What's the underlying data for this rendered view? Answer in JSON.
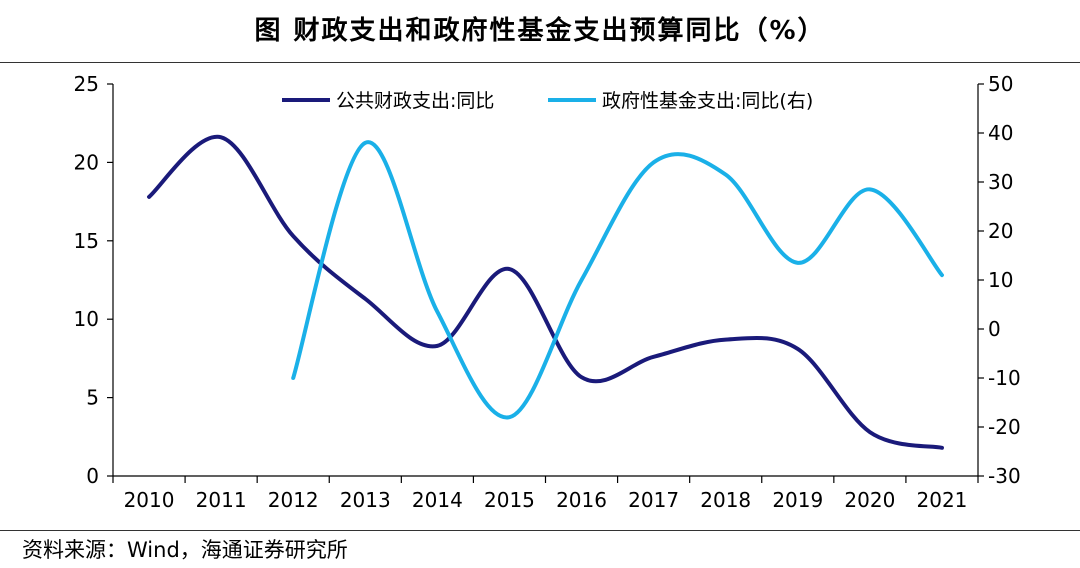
{
  "title": "图  财政支出和政府性基金支出预算同比（%）",
  "source": "资料来源：Wind，海通证券研究所",
  "chart_data": {
    "type": "line",
    "x": [
      "2010",
      "2011",
      "2012",
      "2013",
      "2014",
      "2015",
      "2016",
      "2017",
      "2018",
      "2019",
      "2020",
      "2021"
    ],
    "left_axis": {
      "ticks": [
        0,
        5,
        10,
        15,
        20,
        25
      ],
      "range": [
        0,
        25
      ]
    },
    "right_axis": {
      "ticks": [
        -30,
        -20,
        -10,
        0,
        10,
        20,
        30,
        40,
        50
      ],
      "range": [
        -30,
        50
      ]
    },
    "legend_position": "top",
    "grid": false,
    "series": [
      {
        "name": "公共财政支出:同比",
        "axis": "left",
        "color": "#1a1a7a",
        "values": [
          17.8,
          21.6,
          15.3,
          11.3,
          8.3,
          13.2,
          6.3,
          7.6,
          8.7,
          8.1,
          2.8,
          1.8
        ]
      },
      {
        "name": "政府性基金支出:同比(右)",
        "axis": "right",
        "color": "#1ab0e8",
        "values": [
          null,
          null,
          -10,
          38,
          3.5,
          -18,
          10,
          34,
          31.5,
          13.5,
          28.5,
          11
        ]
      }
    ]
  }
}
